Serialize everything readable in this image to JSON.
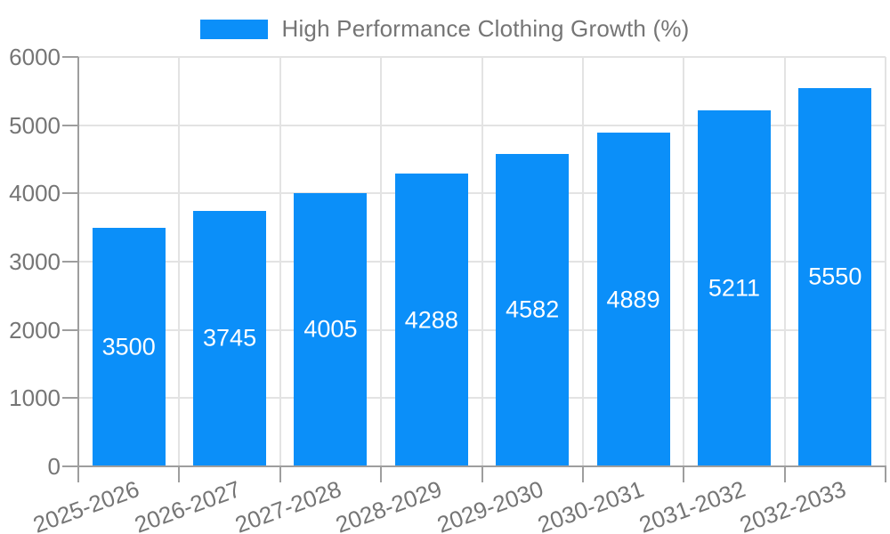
{
  "chart_data": {
    "type": "bar",
    "title": "High Performance Clothing Growth (%)",
    "legend": {
      "position": "top-center",
      "entries": [
        {
          "label": "High Performance Clothing Growth (%)",
          "color": "#0b8ff9"
        }
      ]
    },
    "categories": [
      "2025-2026",
      "2026-2027",
      "2027-2028",
      "2028-2029",
      "2029-2030",
      "2030-2031",
      "2031-2032",
      "2032-2033"
    ],
    "series": [
      {
        "name": "High Performance Clothing Growth (%)",
        "values": [
          3500,
          3745,
          4005,
          4288,
          4582,
          4889,
          5211,
          5550
        ]
      }
    ],
    "value_labels_shown": true,
    "xlabel": "",
    "ylabel": "",
    "ylim": [
      0,
      6000
    ],
    "yticks": [
      0,
      1000,
      2000,
      3000,
      4000,
      5000,
      6000
    ],
    "x_tick_rotation_deg": -20,
    "grid": true,
    "colors": {
      "bar": "#0b8ff9",
      "value_label": "#ffffff",
      "tick_label": "#757575",
      "legend_label": "#757575",
      "axis": "#9e9e9e",
      "gridline": "#e3e3e3",
      "background": "#ffffff"
    }
  }
}
